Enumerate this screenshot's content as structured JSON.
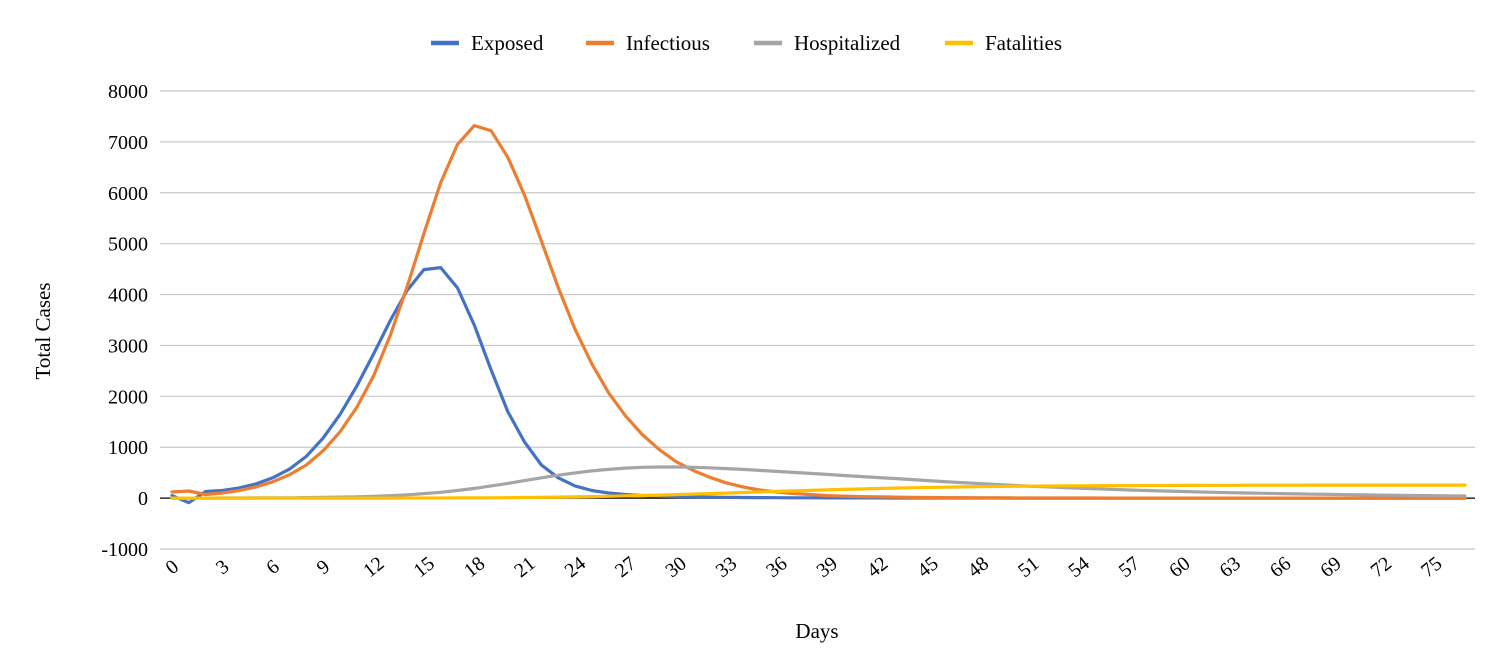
{
  "chart_data": {
    "type": "line",
    "xlabel": "Days",
    "ylabel": "Total Cases",
    "ylim": [
      -1000,
      8000
    ],
    "yticks": [
      -1000,
      0,
      1000,
      2000,
      3000,
      4000,
      5000,
      6000,
      7000,
      8000
    ],
    "xticks": [
      0,
      3,
      6,
      9,
      12,
      15,
      18,
      21,
      24,
      27,
      30,
      33,
      36,
      39,
      42,
      45,
      48,
      51,
      54,
      57,
      60,
      63,
      66,
      69,
      72,
      75
    ],
    "x": [
      0,
      1,
      2,
      3,
      4,
      5,
      6,
      7,
      8,
      9,
      10,
      11,
      12,
      13,
      14,
      15,
      16,
      17,
      18,
      19,
      20,
      21,
      22,
      23,
      24,
      25,
      26,
      27,
      28,
      29,
      30,
      31,
      32,
      33,
      34,
      35,
      36,
      37,
      38,
      39,
      40,
      41,
      42,
      43,
      44,
      45,
      46,
      47,
      48,
      49,
      50,
      51,
      52,
      53,
      54,
      55,
      56,
      57,
      58,
      59,
      60,
      61,
      62,
      63,
      64,
      65,
      66,
      67,
      68,
      69,
      70,
      71,
      72,
      73,
      74,
      75,
      76,
      77
    ],
    "grid": true,
    "legend_position": "top",
    "series": [
      {
        "name": "Exposed",
        "color": "#4472c4",
        "values": [
          50,
          -90,
          130,
          150,
          200,
          280,
          400,
          570,
          820,
          1180,
          1640,
          2200,
          2830,
          3490,
          4080,
          4490,
          4530,
          4130,
          3400,
          2520,
          1700,
          1100,
          650,
          400,
          240,
          150,
          100,
          70,
          50,
          40,
          30,
          25,
          20,
          15,
          12,
          10,
          8,
          7,
          6,
          5,
          5,
          4,
          4,
          3,
          3,
          3,
          2,
          2,
          2,
          2,
          1,
          1,
          1,
          1,
          1,
          1,
          1,
          1,
          1,
          1,
          1,
          1,
          0,
          0,
          0,
          0,
          0,
          0,
          0,
          0,
          0,
          0,
          0,
          0,
          0,
          0,
          0,
          0
        ]
      },
      {
        "name": "Infectious",
        "color": "#ed7d31",
        "values": [
          120,
          140,
          70,
          100,
          150,
          220,
          320,
          460,
          650,
          930,
          1300,
          1780,
          2400,
          3200,
          4150,
          5200,
          6200,
          6950,
          7320,
          7220,
          6700,
          5950,
          5050,
          4140,
          3320,
          2640,
          2070,
          1620,
          1250,
          960,
          720,
          550,
          410,
          300,
          220,
          160,
          120,
          90,
          70,
          50,
          40,
          30,
          25,
          20,
          15,
          12,
          10,
          8,
          6,
          5,
          4,
          3,
          3,
          2,
          2,
          2,
          1,
          1,
          1,
          1,
          1,
          1,
          1,
          1,
          0,
          0,
          0,
          0,
          0,
          0,
          0,
          0,
          0,
          0,
          0,
          0,
          0,
          0
        ]
      },
      {
        "name": "Hospitalized",
        "color": "#a5a5a5",
        "values": [
          0,
          0,
          1,
          2,
          3,
          4,
          5,
          7,
          10,
          14,
          19,
          26,
          35,
          48,
          65,
          88,
          115,
          150,
          190,
          240,
          290,
          345,
          400,
          450,
          495,
          535,
          565,
          590,
          605,
          612,
          612,
          605,
          595,
          580,
          565,
          545,
          525,
          505,
          485,
          465,
          445,
          425,
          405,
          385,
          365,
          345,
          325,
          305,
          287,
          270,
          253,
          237,
          222,
          208,
          195,
          183,
          171,
          160,
          150,
          140,
          131,
          122,
          114,
          107,
          100,
          94,
          88,
          82,
          77,
          72,
          67,
          63,
          59,
          55,
          51,
          48,
          45,
          42
        ]
      },
      {
        "name": "Fatalities",
        "color": "#ffc000",
        "values": [
          0,
          0,
          0,
          0,
          0,
          0,
          0,
          0,
          0,
          0,
          0,
          0,
          1,
          1,
          2,
          2,
          3,
          4,
          5,
          7,
          9,
          12,
          15,
          19,
          24,
          30,
          36,
          43,
          51,
          60,
          69,
          79,
          89,
          99,
          110,
          121,
          131,
          142,
          152,
          162,
          171,
          180,
          188,
          196,
          203,
          209,
          215,
          220,
          225,
          229,
          232,
          235,
          238,
          240,
          242,
          244,
          245,
          246,
          247,
          248,
          249,
          250,
          251,
          252,
          253,
          253,
          254,
          254,
          255,
          255,
          255,
          256,
          256,
          256,
          256,
          256,
          256,
          256
        ]
      }
    ]
  }
}
